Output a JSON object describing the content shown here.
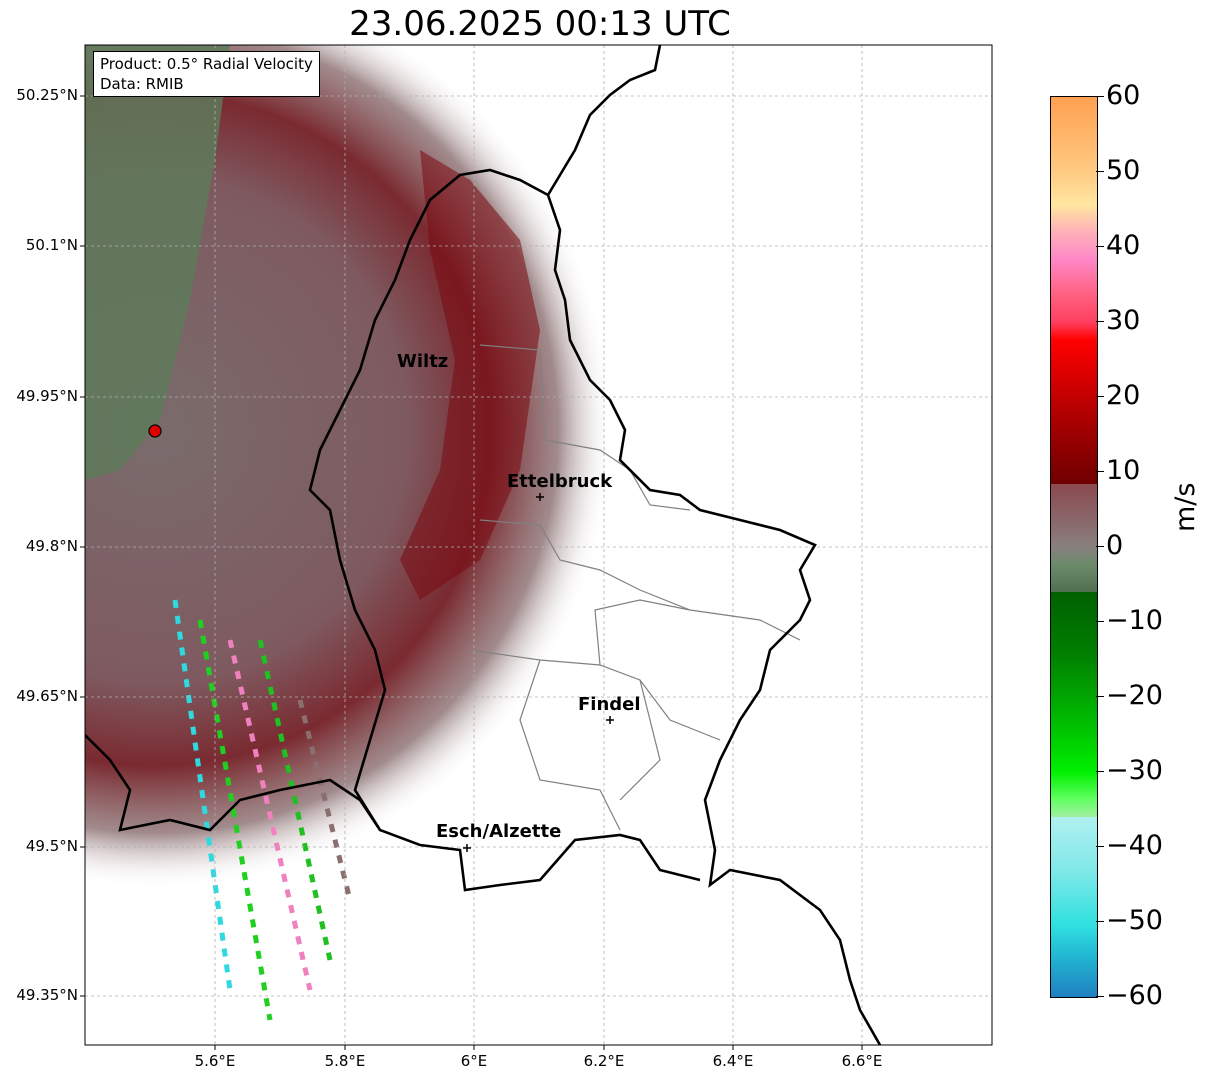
{
  "title": "23.06.2025 00:13 UTC",
  "info": {
    "product": "Product: 0.5° Radial Velocity",
    "data": "Data: RMIB"
  },
  "lat_labels": [
    "50.25°N",
    "50.1°N",
    "49.95°N",
    "49.8°N",
    "49.65°N",
    "49.5°N",
    "49.35°N"
  ],
  "lon_labels": [
    "5.6°E",
    "5.8°E",
    "6°E",
    "6.2°E",
    "6.4°E",
    "6.6°E"
  ],
  "cities": [
    {
      "name": "Wiltz"
    },
    {
      "name": "Ettelbruck"
    },
    {
      "name": "Findel"
    },
    {
      "name": "Esch/Alzette"
    }
  ],
  "colorbar": {
    "unit": "m/s",
    "tick_labels": [
      "60",
      "50",
      "40",
      "30",
      "20",
      "10",
      "0",
      "−10",
      "−20",
      "−30",
      "−40",
      "−50",
      "−60"
    ],
    "range": [
      -60,
      60
    ]
  },
  "colors": {
    "radar_site": "#e00000",
    "border": "#000000",
    "cantons": "#808080"
  }
}
